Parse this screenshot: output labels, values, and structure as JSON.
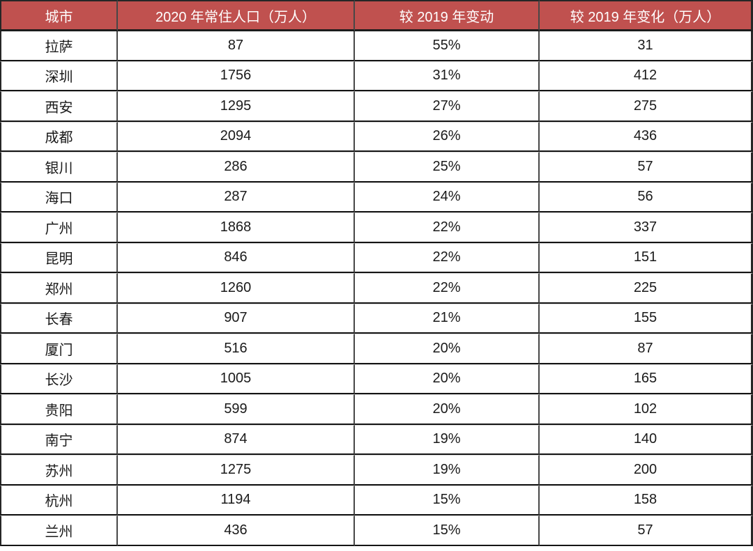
{
  "chart_data": {
    "type": "table",
    "columns": [
      "城市",
      "2020 年常住人口（万人）",
      "较 2019 年变动",
      "较 2019 年变化（万人）"
    ],
    "rows": [
      [
        "拉萨",
        "87",
        "55%",
        "31"
      ],
      [
        "深圳",
        "1756",
        "31%",
        "412"
      ],
      [
        "西安",
        "1295",
        "27%",
        "275"
      ],
      [
        "成都",
        "2094",
        "26%",
        "436"
      ],
      [
        "银川",
        "286",
        "25%",
        "57"
      ],
      [
        "海口",
        "287",
        "24%",
        "56"
      ],
      [
        "广州",
        "1868",
        "22%",
        "337"
      ],
      [
        "昆明",
        "846",
        "22%",
        "151"
      ],
      [
        "郑州",
        "1260",
        "22%",
        "225"
      ],
      [
        "长春",
        "907",
        "21%",
        "155"
      ],
      [
        "厦门",
        "516",
        "20%",
        "87"
      ],
      [
        "长沙",
        "1005",
        "20%",
        "165"
      ],
      [
        "贵阳",
        "599",
        "20%",
        "102"
      ],
      [
        "南宁",
        "874",
        "19%",
        "140"
      ],
      [
        "苏州",
        "1275",
        "19%",
        "200"
      ],
      [
        "杭州",
        "1194",
        "15%",
        "158"
      ],
      [
        "兰州",
        "436",
        "15%",
        "57"
      ]
    ]
  },
  "colors": {
    "header_bg": "#C0514F",
    "header_text": "#FFFFFF",
    "grid_dark": "#141414",
    "grid_light": "#D9D9D9",
    "cell_text": "#1A1A1A"
  }
}
